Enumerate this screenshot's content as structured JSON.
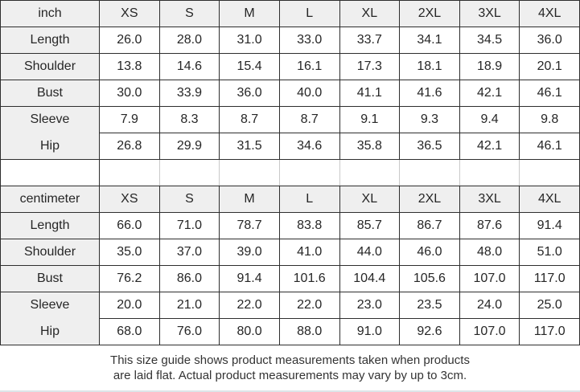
{
  "inch_table": {
    "unit": "inch",
    "sizes": [
      "XS",
      "S",
      "M",
      "L",
      "XL",
      "2XL",
      "3XL",
      "4XL"
    ],
    "rows": [
      {
        "label": "Length",
        "values": [
          "26.0",
          "28.0",
          "31.0",
          "33.0",
          "33.7",
          "34.1",
          "34.5",
          "36.0"
        ]
      },
      {
        "label": "Shoulder",
        "values": [
          "13.8",
          "14.6",
          "15.4",
          "16.1",
          "17.3",
          "18.1",
          "18.9",
          "20.1"
        ]
      },
      {
        "label": "Bust",
        "values": [
          "30.0",
          "33.9",
          "36.0",
          "40.0",
          "41.1",
          "41.6",
          "42.1",
          "46.1"
        ]
      },
      {
        "label": "Sleeve",
        "values": [
          "7.9",
          "8.3",
          "8.7",
          "8.7",
          "9.1",
          "9.3",
          "9.4",
          "9.8"
        ]
      },
      {
        "label": "Hip",
        "values": [
          "26.8",
          "29.9",
          "31.5",
          "34.6",
          "35.8",
          "36.5",
          "42.1",
          "46.1"
        ]
      }
    ]
  },
  "cm_table": {
    "unit": "centimeter",
    "sizes": [
      "XS",
      "S",
      "M",
      "L",
      "XL",
      "2XL",
      "3XL",
      "4XL"
    ],
    "rows": [
      {
        "label": "Length",
        "values": [
          "66.0",
          "71.0",
          "78.7",
          "83.8",
          "85.7",
          "86.7",
          "87.6",
          "91.4"
        ]
      },
      {
        "label": "Shoulder",
        "values": [
          "35.0",
          "37.0",
          "39.0",
          "41.0",
          "44.0",
          "46.0",
          "48.0",
          "51.0"
        ]
      },
      {
        "label": "Bust",
        "values": [
          "76.2",
          "86.0",
          "91.4",
          "101.6",
          "104.4",
          "105.6",
          "107.0",
          "117.0"
        ]
      },
      {
        "label": "Sleeve",
        "values": [
          "20.0",
          "21.0",
          "22.0",
          "22.0",
          "23.0",
          "23.5",
          "24.0",
          "25.0"
        ]
      },
      {
        "label": "Hip",
        "values": [
          "68.0",
          "76.0",
          "80.0",
          "88.0",
          "91.0",
          "92.6",
          "107.0",
          "117.0"
        ]
      }
    ]
  },
  "footer": {
    "line1": "This size guide shows product measurements taken when products",
    "line2": "are laid flat. Actual product measurements may vary by up to 3cm."
  },
  "colors": {
    "header_bg": "#efefef",
    "border": "#2e2e2e",
    "spacer_divider": "#c9c9c9",
    "text": "#262626",
    "footer_rule": "#dde5e9"
  }
}
